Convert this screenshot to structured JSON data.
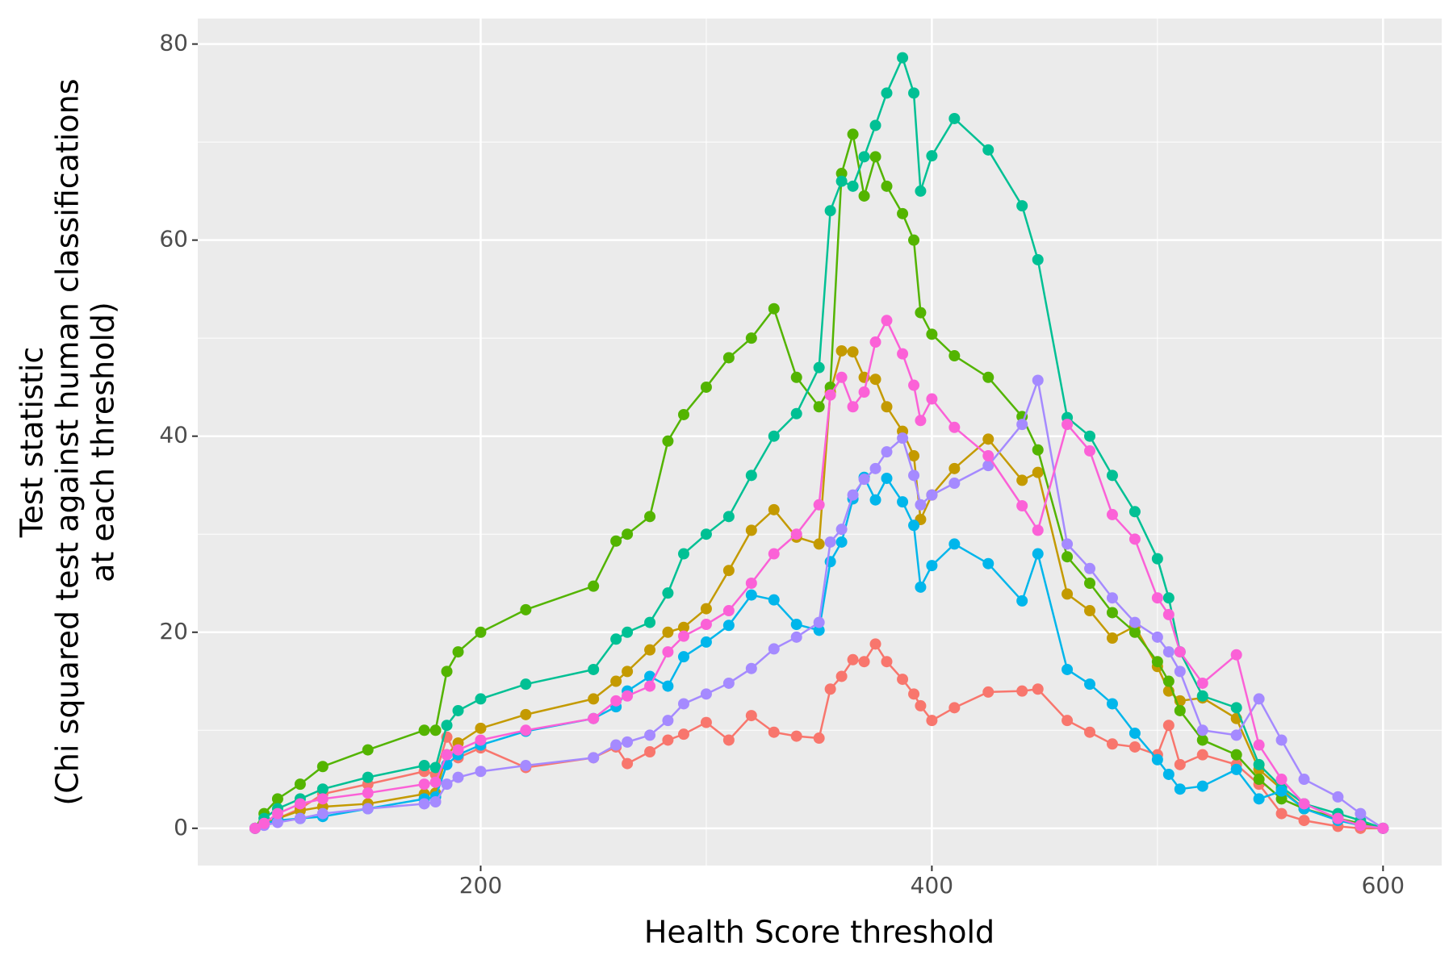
{
  "chart_data": {
    "type": "line",
    "x_label": "Health Score threshold",
    "y_label": [
      "Test statistic",
      "(Chi squared test against human classifications",
      "at each threshold)"
    ],
    "x": [
      100,
      104,
      110,
      120,
      130,
      150,
      175,
      180,
      185,
      190,
      200,
      220,
      250,
      260,
      265,
      275,
      283,
      290,
      300,
      310,
      320,
      330,
      340,
      350,
      355,
      360,
      365,
      370,
      375,
      380,
      387,
      392,
      395,
      400,
      410,
      425,
      440,
      447,
      460,
      470,
      480,
      490,
      500,
      505,
      510,
      520,
      535,
      545,
      555,
      565,
      580,
      590,
      600
    ],
    "series": [
      {
        "color": "#F8766D",
        "values": [
          0,
          0.5,
          1,
          2,
          3.5,
          4.5,
          5.8,
          5.5,
          9.3,
          7.2,
          8.2,
          6.2,
          7.2,
          8.3,
          6.6,
          7.8,
          9,
          9.6,
          10.8,
          9,
          11.5,
          9.8,
          9.4,
          9.2,
          14.2,
          15.5,
          17.2,
          17,
          18.8,
          17,
          15.2,
          13.7,
          12.5,
          11,
          12.3,
          13.9,
          14,
          14.2,
          11,
          9.8,
          8.6,
          8.3,
          7.5,
          10.5,
          6.5,
          7.5,
          6.5,
          4.5,
          1.5,
          0.8,
          0.2,
          0,
          0
        ]
      },
      {
        "color": "#C49A00",
        "values": [
          0,
          0.5,
          1,
          1.8,
          2.2,
          2.5,
          3.5,
          3.6,
          7.5,
          8.7,
          10.2,
          11.6,
          13.2,
          15,
          16,
          18.2,
          20,
          20.5,
          22.4,
          26.3,
          30.4,
          32.5,
          29.7,
          29,
          44.5,
          48.7,
          48.6,
          46,
          45.8,
          43,
          40.5,
          38,
          31.5,
          34,
          36.7,
          39.7,
          35.5,
          36.3,
          23.9,
          22.2,
          19.4,
          20.6,
          16.5,
          14,
          13,
          13.3,
          11.2,
          6,
          4,
          2,
          1,
          0.4,
          0
        ]
      },
      {
        "color": "#53B400",
        "values": [
          0,
          1.5,
          3,
          4.5,
          6.3,
          8,
          10,
          10,
          16,
          18,
          20,
          22.3,
          24.7,
          29.3,
          30,
          31.8,
          39.5,
          42.2,
          45,
          48,
          50,
          53,
          46,
          43,
          45,
          66.8,
          70.8,
          64.5,
          68.5,
          65.5,
          62.7,
          60,
          52.6,
          50.4,
          48.2,
          46,
          42,
          38.6,
          27.7,
          25,
          22,
          20,
          17,
          15,
          12,
          9,
          7.5,
          5,
          3,
          2,
          1,
          0.5,
          0
        ]
      },
      {
        "color": "#00C094",
        "values": [
          0,
          1,
          2,
          3,
          4,
          5.2,
          6.4,
          6.2,
          10.5,
          12,
          13.2,
          14.7,
          16.2,
          19.3,
          20,
          21,
          24,
          28,
          30,
          31.8,
          36,
          40,
          42.3,
          47,
          63,
          66,
          65.5,
          68.5,
          71.7,
          75,
          78.6,
          75,
          65,
          68.6,
          72.4,
          69.2,
          63.5,
          58,
          41.9,
          40,
          36,
          32.3,
          27.5,
          23.5,
          18,
          13.5,
          12.3,
          6.5,
          4.2,
          2.5,
          1.5,
          0.8,
          0
        ]
      },
      {
        "color": "#00B6EB",
        "values": [
          0,
          0.5,
          0.8,
          1,
          1.2,
          2,
          3,
          3.2,
          6.5,
          7.5,
          8.5,
          9.9,
          11.2,
          12.4,
          14,
          15.5,
          14.5,
          17.5,
          19,
          20.7,
          23.8,
          23.3,
          20.8,
          20.2,
          27.2,
          29.2,
          33.6,
          35.8,
          33.5,
          35.7,
          33.3,
          30.9,
          24.6,
          26.8,
          29,
          27,
          23.2,
          28,
          16.2,
          14.7,
          12.7,
          9.7,
          7,
          5.5,
          4,
          4.3,
          6,
          3,
          3.8,
          2,
          0.8,
          0.3,
          0
        ]
      },
      {
        "color": "#A58AFF",
        "values": [
          0,
          0.3,
          0.6,
          1,
          1.5,
          2,
          2.5,
          2.7,
          4.5,
          5.2,
          5.8,
          6.4,
          7.2,
          8.5,
          8.8,
          9.5,
          11,
          12.7,
          13.7,
          14.8,
          16.3,
          18.3,
          19.5,
          21,
          29.2,
          30.5,
          34,
          35.6,
          36.7,
          38.4,
          39.8,
          36,
          33,
          34,
          35.2,
          37,
          41.2,
          45.7,
          29,
          26.5,
          23.5,
          21,
          19.5,
          18,
          16,
          10,
          9.5,
          13.2,
          9,
          5,
          3.2,
          1.5,
          0
        ]
      },
      {
        "color": "#FB61D7",
        "values": [
          0,
          0.5,
          1.5,
          2.5,
          3,
          3.6,
          4.5,
          4.7,
          7.5,
          8,
          9,
          10,
          11.2,
          13,
          13.5,
          14.5,
          18,
          19.6,
          20.8,
          22.2,
          25,
          28,
          30,
          33,
          44.2,
          46,
          43,
          44.5,
          49.6,
          51.8,
          48.4,
          45.2,
          41.6,
          43.8,
          40.9,
          38,
          32.9,
          30.4,
          41.2,
          38.5,
          32,
          29.5,
          23.5,
          21.8,
          18,
          14.8,
          17.7,
          8.5,
          5,
          2.5,
          1,
          0.3,
          0
        ]
      }
    ],
    "xlim": [
      74.6,
      626
    ],
    "ylim": [
      -3.8,
      82.6
    ],
    "xticks": [
      200,
      400,
      600
    ],
    "yticks": [
      0,
      20,
      40,
      60,
      80
    ],
    "grid": true,
    "panel_color": "#EBEBEB"
  }
}
